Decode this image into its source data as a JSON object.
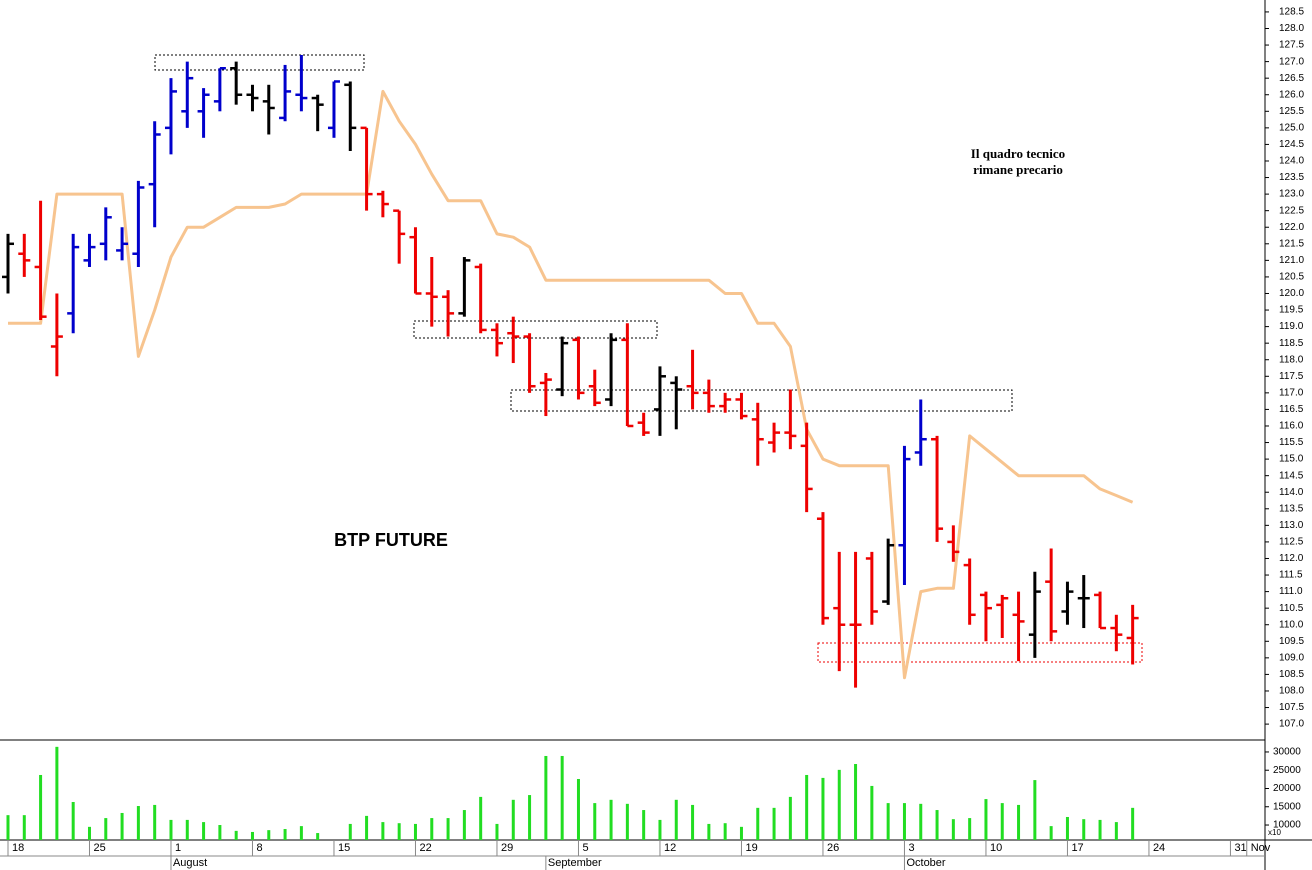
{
  "chart_data": {
    "type": "ohlc",
    "title": "BTP FUTURE",
    "note": [
      "Il quadro tecnico",
      "rimane precario"
    ],
    "note_color": "#ee0000",
    "xlim": [
      -0.49,
      77.12
    ],
    "xticks": [
      {
        "value": 0,
        "label": "18"
      },
      {
        "value": 5,
        "label": "25"
      },
      {
        "value": 10,
        "label": "1"
      },
      {
        "value": 15,
        "label": "8"
      },
      {
        "value": 20,
        "label": "15"
      },
      {
        "value": 25,
        "label": "22"
      },
      {
        "value": 30,
        "label": "29"
      },
      {
        "value": 35,
        "label": "5"
      },
      {
        "value": 40,
        "label": "12"
      },
      {
        "value": 45,
        "label": "19"
      },
      {
        "value": 50,
        "label": "26"
      },
      {
        "value": 55,
        "label": "3"
      },
      {
        "value": 60,
        "label": "10"
      },
      {
        "value": 65,
        "label": "17"
      },
      {
        "value": 70,
        "label": "24"
      },
      {
        "value": 75,
        "label": "31"
      },
      {
        "value": 76,
        "label": "Nov"
      }
    ],
    "month_ticks": [
      {
        "value": 10,
        "label": "August"
      },
      {
        "value": 33,
        "label": "September"
      },
      {
        "value": 55,
        "label": "October"
      }
    ],
    "ylim": [
      106.52,
      128.86
    ],
    "yticks": [
      {
        "value": 107,
        "label": "107.0"
      },
      107.5,
      {
        "value": 108,
        "label": "108.0"
      },
      108.5,
      {
        "value": 109,
        "label": "109.0"
      },
      109.5,
      {
        "value": 110,
        "label": "110.0"
      },
      110.5,
      {
        "value": 111,
        "label": "111.0"
      },
      111.5,
      {
        "value": 112,
        "label": "112.0"
      },
      112.5,
      {
        "value": 113,
        "label": "113.0"
      },
      113.5,
      {
        "value": 114,
        "label": "114.0"
      },
      114.5,
      {
        "value": 115,
        "label": "115.0"
      },
      115.5,
      {
        "value": 116,
        "label": "116.0"
      },
      116.5,
      {
        "value": 117,
        "label": "117.0"
      },
      117.5,
      {
        "value": 118,
        "label": "118.0"
      },
      118.5,
      {
        "value": 119,
        "label": "119.0"
      },
      119.5,
      {
        "value": 120,
        "label": "120.0"
      },
      120.5,
      {
        "value": 121,
        "label": "121.0"
      },
      121.5,
      {
        "value": 122,
        "label": "122.0"
      },
      122.5,
      {
        "value": 123,
        "label": "123.0"
      },
      123.5,
      {
        "value": 124,
        "label": "124.0"
      },
      124.5,
      {
        "value": 125,
        "label": "125.0"
      },
      125.5,
      {
        "value": 126,
        "label": "126.0"
      },
      126.5,
      {
        "value": 127,
        "label": "127.0"
      },
      127.5,
      {
        "value": 128,
        "label": "128.0"
      },
      128.5
    ],
    "open": [
      120.5,
      121.2,
      120.8,
      118.4,
      119.4,
      121.0,
      121.5,
      121.3,
      121.2,
      123.3,
      125.0,
      125.5,
      125.5,
      125.8,
      126.8,
      126.0,
      125.8,
      125.3,
      126.0,
      125.9,
      125.0,
      126.3,
      125.0,
      123.0,
      122.5,
      121.7,
      120.0,
      119.9,
      119.4,
      120.8,
      118.9,
      118.8,
      118.7,
      117.3,
      117.1,
      118.6,
      117.2,
      116.8,
      118.6,
      116.1,
      116.5,
      117.3,
      117.2,
      117.0,
      116.6,
      116.8,
      116.2,
      115.5,
      115.8,
      115.4,
      113.2,
      110.5,
      110.0,
      112.0,
      110.7,
      112.4,
      115.2,
      115.6,
      112.5,
      111.8,
      110.9,
      110.6,
      110.3,
      109.7,
      111.3,
      110.4,
      110.8,
      110.9,
      109.9,
      109.6
    ],
    "high": [
      121.8,
      121.8,
      122.8,
      120.0,
      121.8,
      121.8,
      122.6,
      122.0,
      123.4,
      125.2,
      126.5,
      127.0,
      126.2,
      126.8,
      127.0,
      126.3,
      126.3,
      126.9,
      127.2,
      126.0,
      126.4,
      126.4,
      125.0,
      123.1,
      122.5,
      122.0,
      121.1,
      120.1,
      121.1,
      120.9,
      119.1,
      119.3,
      118.8,
      117.6,
      118.7,
      118.7,
      117.7,
      118.8,
      119.1,
      116.4,
      117.8,
      117.5,
      118.3,
      117.4,
      117.0,
      117.0,
      116.7,
      116.1,
      117.1,
      116.1,
      113.4,
      112.2,
      112.2,
      112.2,
      112.6,
      115.4,
      116.8,
      115.7,
      113.0,
      112.0,
      111.0,
      110.9,
      111.0,
      111.6,
      112.3,
      111.3,
      111.5,
      111.0,
      110.3,
      110.6
    ],
    "low": [
      120.0,
      120.5,
      119.2,
      117.5,
      118.8,
      120.8,
      121.0,
      121.0,
      120.8,
      122.0,
      124.2,
      125.0,
      124.7,
      125.5,
      125.7,
      125.5,
      124.8,
      125.2,
      125.5,
      124.9,
      124.7,
      124.3,
      122.5,
      122.3,
      120.9,
      120.0,
      119.0,
      118.7,
      119.3,
      118.8,
      118.1,
      117.9,
      117.0,
      116.3,
      116.9,
      116.8,
      116.6,
      116.6,
      116.0,
      115.7,
      115.7,
      115.9,
      116.5,
      116.4,
      116.4,
      116.2,
      114.8,
      115.2,
      115.3,
      113.4,
      110.0,
      108.6,
      108.1,
      110.0,
      110.6,
      111.2,
      114.8,
      112.5,
      111.9,
      110.0,
      109.5,
      109.6,
      108.9,
      109.0,
      109.5,
      110.0,
      109.9,
      109.9,
      109.2,
      108.8
    ],
    "close": [
      121.5,
      121.0,
      119.3,
      118.7,
      121.4,
      121.4,
      122.3,
      121.5,
      123.2,
      124.8,
      126.1,
      126.5,
      126.0,
      126.8,
      126.0,
      125.9,
      125.6,
      126.1,
      125.9,
      125.7,
      126.4,
      125.0,
      123.0,
      122.7,
      121.8,
      120.0,
      119.9,
      119.4,
      121.0,
      118.9,
      118.5,
      118.7,
      117.2,
      117.4,
      118.5,
      117.0,
      116.7,
      118.6,
      116.0,
      115.8,
      117.5,
      117.1,
      117.0,
      116.6,
      116.8,
      116.3,
      115.6,
      115.8,
      115.7,
      114.1,
      110.2,
      110.0,
      110.0,
      110.4,
      112.4,
      115.0,
      115.6,
      112.9,
      112.2,
      110.3,
      110.5,
      110.8,
      110.1,
      111.0,
      109.8,
      111.0,
      110.8,
      109.9,
      109.7,
      110.2
    ],
    "colors": [
      "#000000",
      "#ee0000",
      "#ee0000",
      "#ee0000",
      "#0000cc",
      "#0000cc",
      "#0000cc",
      "#0000cc",
      "#0000cc",
      "#0000cc",
      "#0000cc",
      "#0000cc",
      "#0000cc",
      "#0000cc",
      "#000000",
      "#000000",
      "#000000",
      "#0000cc",
      "#0000cc",
      "#000000",
      "#0000cc",
      "#000000",
      "#ee0000",
      "#ee0000",
      "#ee0000",
      "#ee0000",
      "#ee0000",
      "#ee0000",
      "#000000",
      "#ee0000",
      "#ee0000",
      "#ee0000",
      "#ee0000",
      "#ee0000",
      "#000000",
      "#ee0000",
      "#ee0000",
      "#000000",
      "#ee0000",
      "#ee0000",
      "#000000",
      "#000000",
      "#ee0000",
      "#ee0000",
      "#ee0000",
      "#ee0000",
      "#ee0000",
      "#ee0000",
      "#ee0000",
      "#ee0000",
      "#ee0000",
      "#ee0000",
      "#ee0000",
      "#ee0000",
      "#000000",
      "#0000cc",
      "#0000cc",
      "#ee0000",
      "#ee0000",
      "#ee0000",
      "#ee0000",
      "#ee0000",
      "#ee0000",
      "#000000",
      "#ee0000",
      "#000000",
      "#000000",
      "#ee0000",
      "#ee0000",
      "#ee0000"
    ],
    "line": {
      "color": "#f7c48f",
      "values": [
        119.1,
        119.1,
        119.1,
        123.0,
        123.0,
        123.0,
        123.0,
        123.0,
        118.1,
        119.5,
        121.1,
        122.0,
        122.0,
        122.3,
        122.6,
        122.6,
        122.6,
        122.7,
        123.0,
        123.0,
        123.0,
        123.0,
        123.0,
        126.1,
        125.2,
        124.5,
        123.6,
        122.8,
        122.8,
        122.8,
        121.8,
        121.7,
        121.4,
        120.4,
        120.4,
        120.4,
        120.4,
        120.4,
        120.4,
        120.4,
        120.4,
        120.4,
        120.4,
        120.4,
        120.0,
        120.0,
        119.1,
        119.1,
        118.4,
        115.9,
        115.0,
        114.8,
        114.8,
        114.8,
        114.8,
        108.4,
        111.0,
        111.1,
        111.1,
        115.7,
        115.3,
        114.9,
        114.5,
        114.5,
        114.5,
        114.5,
        114.5,
        114.1,
        113.9,
        113.7
      ]
    },
    "volume": {
      "color": "#22dd22",
      "unit_label": "x10",
      "ylim": [
        5900,
        33000
      ],
      "yticks": [
        10000,
        15000,
        20000,
        25000,
        30000
      ],
      "values": [
        12700,
        12700,
        23700,
        31400,
        16300,
        9500,
        11900,
        13300,
        15200,
        15500,
        11400,
        11400,
        10800,
        10000,
        8400,
        8100,
        8600,
        8900,
        9700,
        7800,
        null,
        10300,
        12500,
        10800,
        10500,
        10300,
        11900,
        11900,
        14100,
        17700,
        10300,
        16900,
        18200,
        28900,
        28900,
        22600,
        16000,
        16900,
        15800,
        14100,
        11400,
        16900,
        15500,
        10300,
        10500,
        9500,
        14700,
        14700,
        17700,
        23700,
        22900,
        25100,
        26700,
        20700,
        16000,
        16000,
        15800,
        14100,
        11600,
        11900,
        17100,
        16000,
        15500,
        22300,
        9700,
        12200,
        11600,
        11400,
        10800,
        14700
      ]
    }
  }
}
